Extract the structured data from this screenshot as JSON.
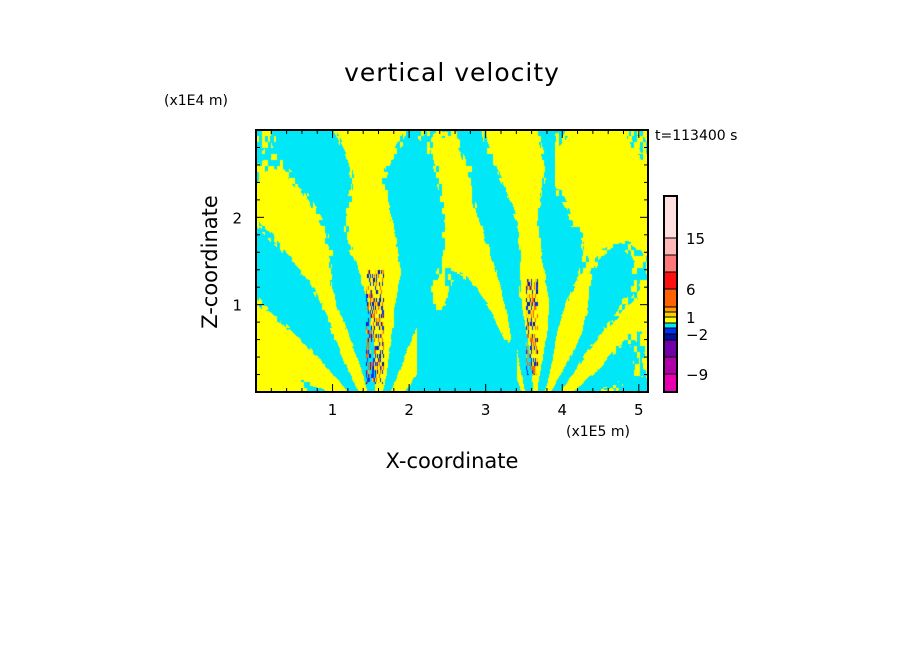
{
  "chart_data": {
    "type": "heatmap",
    "title": "vertical velocity",
    "xlabel": "X-coordinate",
    "ylabel": "Z-coordinate",
    "x_unit": "(x1E5 m)",
    "y_unit": "(x1E4 m)",
    "time_label": "t=113400 s",
    "xlim": [
      0,
      5.12
    ],
    "ylim": [
      0,
      3.0
    ],
    "x_ticks": [
      1,
      2,
      3,
      4,
      5
    ],
    "x_tick_labels": [
      "1",
      "2",
      "3",
      "4",
      "5"
    ],
    "y_ticks": [
      1,
      2
    ],
    "y_tick_labels": [
      "1",
      "2"
    ],
    "disturbance_centers_x": [
      1.55,
      3.6
    ],
    "colorbar": {
      "levels": [
        -12,
        -9,
        -6,
        -3,
        -2,
        -1,
        0,
        1,
        2,
        3,
        6,
        9,
        12,
        15,
        21
      ],
      "colors": [
        "#e800b0",
        "#b000a8",
        "#7000a8",
        "#0010a0",
        "#0030f0",
        "#00e8f8",
        "#ffff00",
        "#ffd000",
        "#ffa000",
        "#ff6000",
        "#ff1010",
        "#ff7878",
        "#ffb8b8",
        "#ffe0e0"
      ],
      "labeled_levels": [
        15,
        6,
        1,
        -2,
        -9
      ],
      "tick_labels": [
        "15",
        "6",
        "1",
        "−2",
        "−9"
      ]
    }
  }
}
